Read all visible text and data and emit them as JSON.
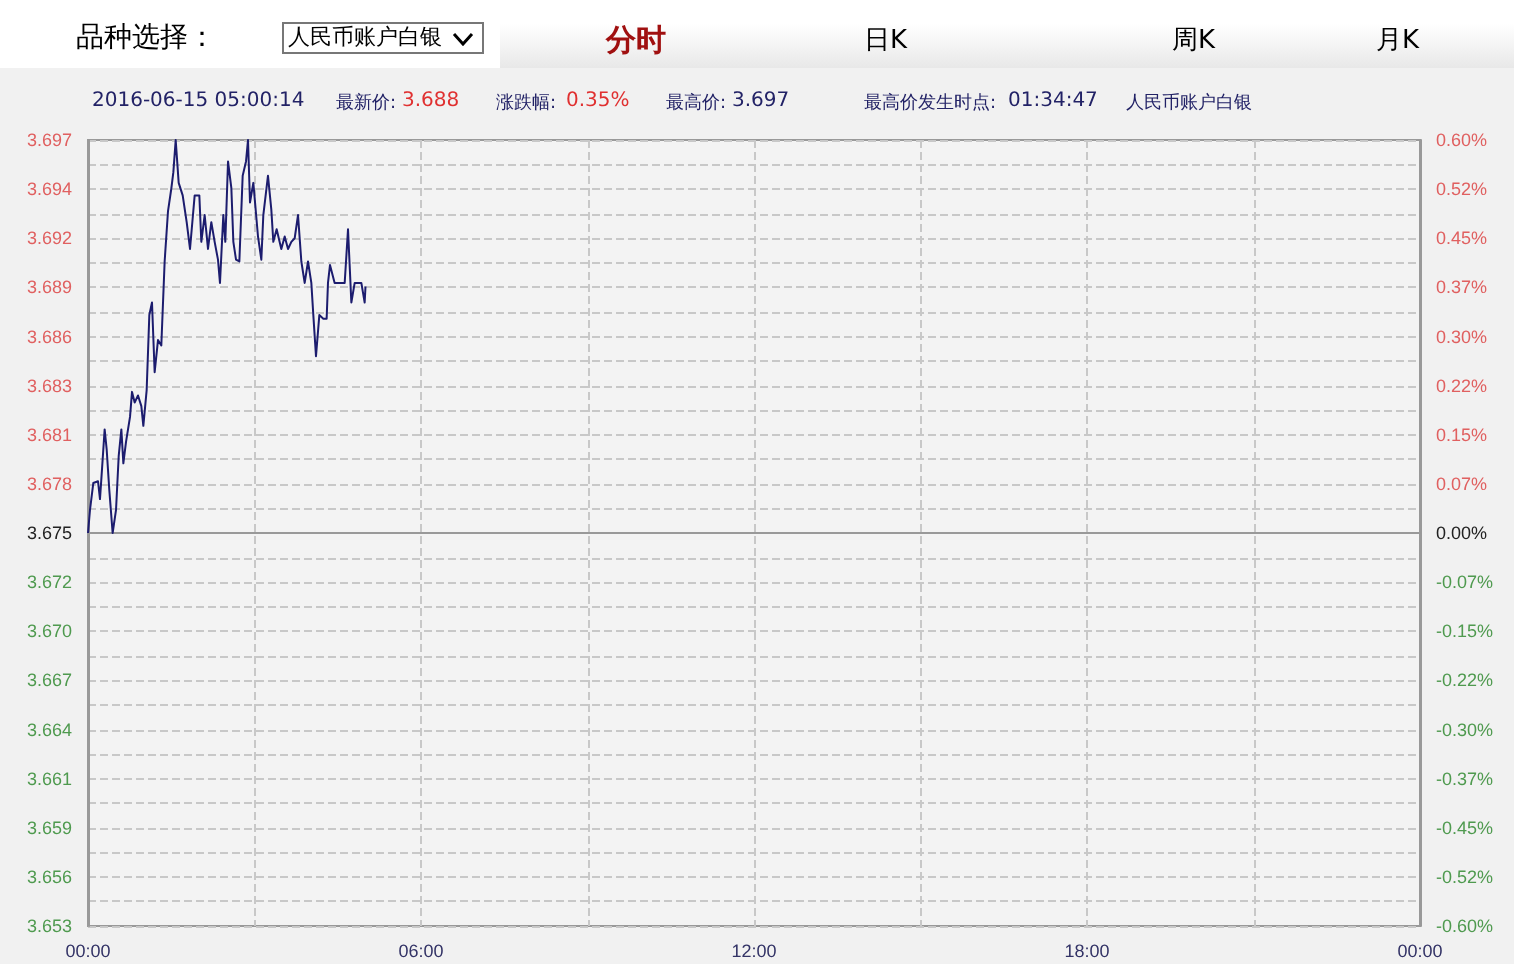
{
  "chart_data": {
    "type": "line",
    "annotations": [
      "品种选择：",
      "人民币账户白银",
      "分时",
      "日K",
      "周K",
      "月K",
      "2016-06-15 05:00:14",
      "最新价:",
      "3.688",
      "涨跌幅:",
      "0.35%",
      "最高价:",
      "3.697",
      "最高价发生时点:",
      "01:34:47",
      "人民币账户白银"
    ],
    "series": [
      {
        "color": "#1c1c6e",
        "x": [
          0,
          0.036,
          0.096,
          0.18,
          0.216,
          0.24,
          0.3,
          0.336,
          0.384,
          0.444,
          0.505,
          0.553,
          0.601,
          0.637,
          0.685,
          0.757,
          0.793,
          0.841,
          0.901,
          0.961,
          0.997,
          1.057,
          1.105,
          1.153,
          1.201,
          1.261,
          1.321,
          1.381,
          1.441,
          1.502,
          1.538,
          1.58,
          1.634,
          1.706,
          1.778,
          1.838,
          1.922,
          2.006,
          2.042,
          2.102,
          2.162,
          2.222,
          2.282,
          2.342,
          2.378,
          2.438,
          2.474,
          2.523,
          2.583,
          2.619,
          2.667,
          2.727,
          2.787,
          2.847,
          2.883,
          2.919,
          2.979,
          3.063,
          3.123,
          3.159,
          3.243,
          3.303,
          3.339,
          3.399,
          3.483,
          3.544,
          3.604,
          3.664,
          3.724,
          3.784,
          3.844,
          3.904,
          3.964,
          4.024,
          4.06,
          4.108,
          4.168,
          4.24,
          4.3,
          4.324,
          4.36,
          4.444,
          4.565,
          4.625,
          4.685,
          4.745,
          4.805,
          4.925,
          4.985,
          5.0
        ],
        "values": [
          3.675,
          3.6763,
          3.6778,
          3.6779,
          3.6769,
          3.678,
          3.6808,
          3.6797,
          3.6774,
          3.675,
          3.6763,
          3.6793,
          3.6808,
          3.6789,
          3.6801,
          3.6815,
          3.6829,
          3.6823,
          3.6827,
          3.6821,
          3.681,
          3.683,
          3.6872,
          3.6879,
          3.684,
          3.6858,
          3.6855,
          3.6902,
          3.693,
          3.6943,
          3.6952,
          3.697,
          3.6946,
          3.6939,
          3.6924,
          3.6909,
          3.6939,
          3.6939,
          3.6913,
          3.6928,
          3.6909,
          3.6924,
          3.6913,
          3.6903,
          3.689,
          3.6928,
          3.6913,
          3.6958,
          3.6943,
          3.6913,
          3.6903,
          3.6902,
          3.695,
          3.6958,
          3.697,
          3.6935,
          3.6946,
          3.6916,
          3.6903,
          3.6928,
          3.695,
          3.6931,
          3.6913,
          3.692,
          3.6909,
          3.6916,
          3.6909,
          3.6913,
          3.6915,
          3.6928,
          3.6902,
          3.689,
          3.6902,
          3.689,
          3.6872,
          3.6849,
          3.6872,
          3.687,
          3.687,
          3.689,
          3.69,
          3.689,
          3.689,
          3.689,
          3.692,
          3.6879,
          3.689,
          3.689,
          3.6879,
          3.6888
        ]
      }
    ],
    "xlim": [
      0,
      24
    ],
    "xticks": [
      {
        "value": 0,
        "label": "00:00"
      },
      {
        "value": 3,
        "label": null
      },
      {
        "value": 6,
        "label": "06:00"
      },
      {
        "value": 9,
        "label": null
      },
      {
        "value": 12,
        "label": "12:00"
      },
      {
        "value": 15,
        "label": null
      },
      {
        "value": 18,
        "label": "18:00"
      },
      {
        "value": 21,
        "label": null
      },
      {
        "value": 24,
        "label": "00:00"
      }
    ],
    "ylim": [
      3.653,
      3.697
    ],
    "yticks": [
      {
        "value": 3.653,
        "label": "3.653"
      },
      {
        "value": 3.654375,
        "label": null
      },
      {
        "value": 3.65575,
        "label": "3.656"
      },
      {
        "value": 3.657125,
        "label": null
      },
      {
        "value": 3.6585,
        "label": "3.659"
      },
      {
        "value": 3.659875,
        "label": null
      },
      {
        "value": 3.66125,
        "label": "3.661"
      },
      {
        "value": 3.662625,
        "label": null
      },
      {
        "value": 3.664,
        "label": "3.664"
      },
      {
        "value": 3.665375,
        "label": null
      },
      {
        "value": 3.66675,
        "label": "3.667"
      },
      {
        "value": 3.668125,
        "label": null
      },
      {
        "value": 3.6695,
        "label": "3.670"
      },
      {
        "value": 3.670875,
        "label": null
      },
      {
        "value": 3.67225,
        "label": "3.672"
      },
      {
        "value": 3.673625,
        "label": null
      },
      {
        "value": 3.675,
        "label": "3.675"
      },
      {
        "value": 3.676375,
        "label": null
      },
      {
        "value": 3.67775,
        "label": "3.678"
      },
      {
        "value": 3.679125,
        "label": null
      },
      {
        "value": 3.6805,
        "label": "3.681"
      },
      {
        "value": 3.681875,
        "label": null
      },
      {
        "value": 3.68325,
        "label": "3.683"
      },
      {
        "value": 3.684625,
        "label": null
      },
      {
        "value": 3.686,
        "label": "3.686"
      },
      {
        "value": 3.687375,
        "label": null
      },
      {
        "value": 3.68875,
        "label": "3.689"
      },
      {
        "value": 3.690125,
        "label": null
      },
      {
        "value": 3.6915,
        "label": "3.692"
      },
      {
        "value": 3.692875,
        "label": null
      },
      {
        "value": 3.69425,
        "label": "3.694"
      },
      {
        "value": 3.695625,
        "label": null
      },
      {
        "value": 3.697,
        "label": "3.697"
      }
    ],
    "y2lim": [
      -0.6,
      0.6
    ],
    "y2ticks": [
      {
        "value": -0.6,
        "label": "-0.60%"
      },
      {
        "value": -0.525,
        "label": "-0.52%"
      },
      {
        "value": -0.45,
        "label": "-0.45%"
      },
      {
        "value": -0.375,
        "label": "-0.37%"
      },
      {
        "value": -0.3,
        "label": "-0.30%"
      },
      {
        "value": -0.225,
        "label": "-0.22%"
      },
      {
        "value": -0.15,
        "label": "-0.15%"
      },
      {
        "value": -0.075,
        "label": "-0.07%"
      },
      {
        "value": 0,
        "label": "0.00%"
      },
      {
        "value": 0.075,
        "label": "0.07%"
      },
      {
        "value": 0.15,
        "label": "0.15%"
      },
      {
        "value": 0.225,
        "label": "0.22%"
      },
      {
        "value": 0.3,
        "label": "0.30%"
      },
      {
        "value": 0.375,
        "label": "0.37%"
      },
      {
        "value": 0.45,
        "label": "0.45%"
      },
      {
        "value": 0.525,
        "label": "0.52%"
      },
      {
        "value": 0.6,
        "label": "0.60%"
      }
    ],
    "grid": true,
    "marker": "none",
    "line_style": "solid"
  }
}
